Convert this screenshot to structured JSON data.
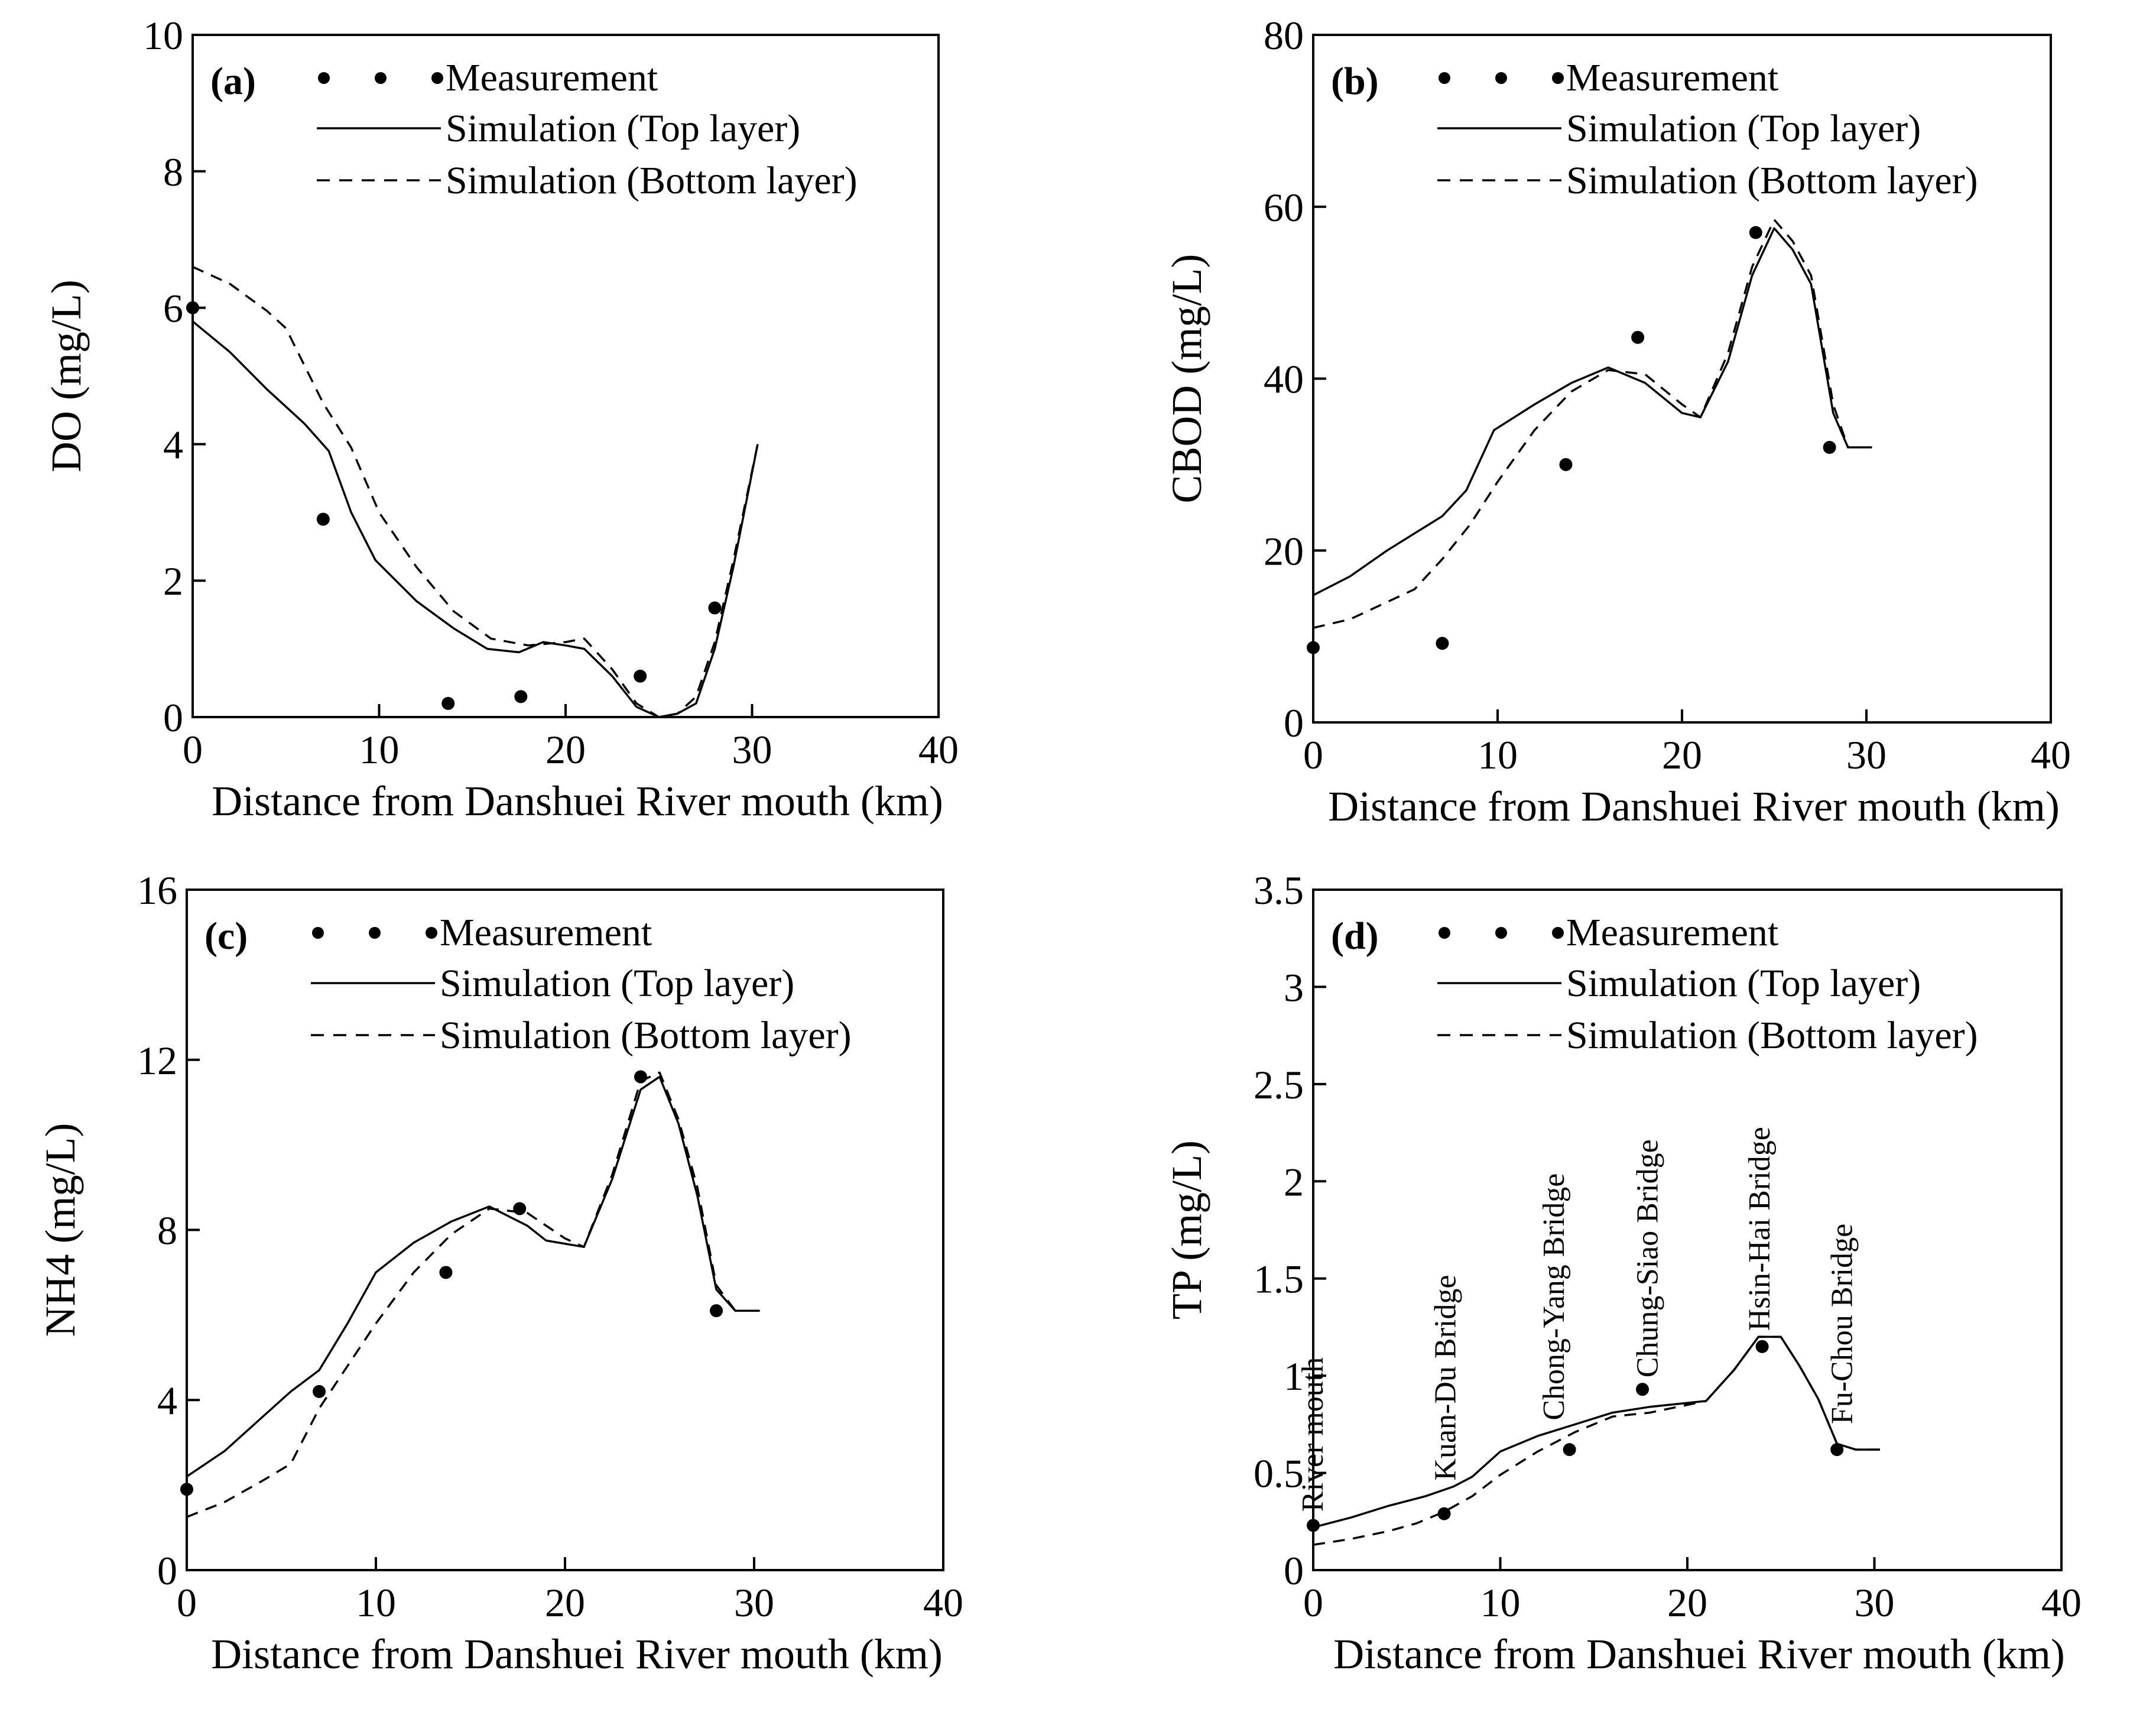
{
  "legend": {
    "measurement": "Measurement",
    "top": "Simulation (Top layer)",
    "bottom": "Simulation (Bottom layer)"
  },
  "chart_data": [
    {
      "id": "a",
      "type": "line",
      "panel_label": "(a)",
      "xlabel": "Distance from Danshuei River mouth (km)",
      "ylabel": "DO (mg/L)",
      "xlim": [
        0,
        40
      ],
      "ylim": [
        0,
        10
      ],
      "xticks": [
        0,
        10,
        20,
        30,
        40
      ],
      "yticks": [
        0,
        2,
        4,
        6,
        8,
        10
      ],
      "grid": false,
      "legend_position": "top-left",
      "series": [
        {
          "name": "Measurement",
          "style": "points",
          "x": [
            0,
            7,
            13.7,
            17.6,
            24,
            28
          ],
          "y": [
            6.0,
            2.9,
            0.2,
            0.3,
            0.6,
            1.6
          ]
        },
        {
          "name": "Simulation (Top layer)",
          "style": "solid",
          "x": [
            0,
            2,
            4,
            6,
            7.3,
            8.5,
            9.8,
            12,
            14,
            15.8,
            17.5,
            18.8,
            20,
            21,
            22.5,
            23.8,
            25,
            26,
            27,
            28,
            29,
            30.3
          ],
          "y": [
            5.8,
            5.35,
            4.8,
            4.3,
            3.9,
            3.0,
            2.3,
            1.7,
            1.3,
            1.0,
            0.95,
            1.1,
            1.05,
            1.0,
            0.6,
            0.15,
            0.0,
            0.05,
            0.2,
            1.0,
            2.2,
            4.0
          ]
        },
        {
          "name": "Simulation (Bottom layer)",
          "style": "dashed",
          "x": [
            0,
            2,
            4,
            5,
            7,
            8.5,
            10,
            12,
            14,
            16,
            18,
            20,
            21,
            22.5,
            23.8,
            25,
            26,
            27,
            28,
            29,
            30.3
          ],
          "y": [
            6.6,
            6.35,
            5.95,
            5.7,
            4.6,
            3.95,
            3.0,
            2.2,
            1.55,
            1.15,
            1.05,
            1.1,
            1.15,
            0.7,
            0.2,
            0.0,
            0.05,
            0.3,
            1.1,
            2.3,
            4.0
          ]
        }
      ]
    },
    {
      "id": "b",
      "type": "line",
      "panel_label": "(b)",
      "xlabel": "Distance from Danshuei River mouth (km)",
      "ylabel": "CBOD (mg/L)",
      "xlim": [
        0,
        40
      ],
      "ylim": [
        0,
        80
      ],
      "xticks": [
        0,
        10,
        20,
        30,
        40
      ],
      "yticks": [
        0,
        20,
        40,
        60,
        80
      ],
      "grid": false,
      "legend_position": "top-left",
      "series": [
        {
          "name": "Measurement",
          "style": "points",
          "x": [
            0,
            7,
            13.7,
            17.6,
            24,
            28
          ],
          "y": [
            8.7,
            9.2,
            30.0,
            44.8,
            57.0,
            32.0
          ]
        },
        {
          "name": "Simulation (Top layer)",
          "style": "solid",
          "x": [
            0,
            2,
            4,
            5.5,
            7,
            8.3,
            9.8,
            12,
            14,
            16,
            18,
            20,
            21,
            22.5,
            23.8,
            25,
            26,
            27,
            28.2,
            29,
            30.3
          ],
          "y": [
            14.8,
            17.0,
            20.0,
            22.0,
            24.0,
            27.0,
            34.0,
            37.0,
            39.5,
            41.3,
            39.5,
            36.0,
            35.5,
            42.0,
            52.0,
            57.5,
            55.0,
            51.0,
            36.0,
            32.0,
            32.0
          ]
        },
        {
          "name": "Simulation (Bottom layer)",
          "style": "dashed",
          "x": [
            0,
            2,
            4,
            5.5,
            7,
            8.5,
            10,
            12,
            14,
            16,
            18,
            20,
            21,
            22.5,
            23.8,
            25,
            26,
            27,
            28.2,
            29,
            30.3
          ],
          "y": [
            11.0,
            12.0,
            14.0,
            15.5,
            19.0,
            23.0,
            28.0,
            34.0,
            38.5,
            41.0,
            40.5,
            37.0,
            35.5,
            43.0,
            53.0,
            58.5,
            56.0,
            52.0,
            37.0,
            32.0,
            32.0
          ]
        }
      ]
    },
    {
      "id": "c",
      "type": "line",
      "panel_label": "(c)",
      "xlabel": "Distance from Danshuei River mouth (km)",
      "ylabel": "NH4 (mg/L)",
      "xlim": [
        0,
        40
      ],
      "ylim": [
        0,
        16
      ],
      "xticks": [
        0,
        10,
        20,
        30,
        40
      ],
      "yticks": [
        0,
        4,
        8,
        12,
        16
      ],
      "grid": false,
      "legend_position": "top-left",
      "series": [
        {
          "name": "Measurement",
          "style": "points",
          "x": [
            0,
            7,
            13.7,
            17.6,
            24,
            28
          ],
          "y": [
            1.9,
            4.2,
            7.0,
            8.5,
            11.6,
            6.1
          ]
        },
        {
          "name": "Simulation (Top layer)",
          "style": "solid",
          "x": [
            0,
            2,
            4,
            5.5,
            7,
            8.5,
            10,
            12,
            14,
            16,
            18,
            19,
            21,
            22.5,
            24,
            25,
            26,
            27,
            28,
            29,
            30.3
          ],
          "y": [
            2.2,
            2.8,
            3.6,
            4.2,
            4.7,
            5.8,
            7.0,
            7.7,
            8.2,
            8.55,
            8.1,
            7.75,
            7.6,
            9.2,
            11.3,
            11.6,
            10.5,
            8.8,
            6.6,
            6.1,
            6.1
          ]
        },
        {
          "name": "Simulation (Bottom layer)",
          "style": "dashed",
          "x": [
            0,
            2,
            4,
            5.5,
            7,
            8.5,
            10,
            12,
            14,
            16,
            18,
            20,
            21,
            22.5,
            24,
            25,
            26,
            27,
            28,
            29,
            30.3
          ],
          "y": [
            1.25,
            1.6,
            2.1,
            2.5,
            3.8,
            4.8,
            5.8,
            7.0,
            7.9,
            8.5,
            8.4,
            7.8,
            7.6,
            9.3,
            11.5,
            11.7,
            10.6,
            9.0,
            6.7,
            6.1,
            6.1
          ]
        }
      ]
    },
    {
      "id": "d",
      "type": "line",
      "panel_label": "(d)",
      "xlabel": "Distance from Danshuei River mouth (km)",
      "ylabel": "TP (mg/L)",
      "xlim": [
        0,
        40
      ],
      "ylim": [
        0,
        3.5
      ],
      "xticks": [
        0,
        10,
        20,
        30,
        40
      ],
      "yticks": [
        0,
        0.5,
        1,
        1.5,
        2,
        2.5,
        3,
        3.5
      ],
      "grid": false,
      "legend_position": "top-left",
      "annotations": [
        {
          "text": "River mouth",
          "x": 0.5,
          "y": 0.27
        },
        {
          "text": "Kuan-Du Bridge",
          "x": 7.6,
          "y": 0.43
        },
        {
          "text": "Chong-Yang Bridge",
          "x": 13.4,
          "y": 0.74
        },
        {
          "text": "Chung-Siao Bridge",
          "x": 18.4,
          "y": 0.96
        },
        {
          "text": "Hsin-Hai Bridge",
          "x": 24.4,
          "y": 1.2
        },
        {
          "text": "Fu-Chou Bridge",
          "x": 28.8,
          "y": 0.72
        }
      ],
      "series": [
        {
          "name": "Measurement",
          "style": "points",
          "x": [
            0,
            7,
            13.7,
            17.6,
            24,
            28
          ],
          "y": [
            0.23,
            0.29,
            0.62,
            0.93,
            1.15,
            0.62
          ]
        },
        {
          "name": "Simulation (Top layer)",
          "style": "solid",
          "x": [
            0,
            2,
            4,
            6,
            7.5,
            8.5,
            10,
            12,
            14,
            16,
            18,
            19,
            21,
            22.5,
            23.8,
            25,
            26,
            27,
            28,
            29,
            30.3
          ],
          "y": [
            0.22,
            0.27,
            0.33,
            0.38,
            0.43,
            0.48,
            0.61,
            0.69,
            0.75,
            0.81,
            0.84,
            0.85,
            0.87,
            1.03,
            1.2,
            1.2,
            1.05,
            0.88,
            0.65,
            0.62,
            0.62
          ]
        },
        {
          "name": "Simulation (Bottom layer)",
          "style": "dashed",
          "x": [
            0,
            2,
            4,
            5.5,
            7,
            8.5,
            10,
            12,
            14,
            16,
            18,
            20,
            21,
            22.5,
            23.8,
            25,
            26,
            27,
            28,
            29,
            30.3
          ],
          "y": [
            0.13,
            0.16,
            0.2,
            0.24,
            0.3,
            0.38,
            0.49,
            0.61,
            0.71,
            0.79,
            0.81,
            0.85,
            0.87,
            1.03,
            1.2,
            1.2,
            1.05,
            0.88,
            0.65,
            0.62,
            0.62
          ]
        }
      ]
    }
  ]
}
